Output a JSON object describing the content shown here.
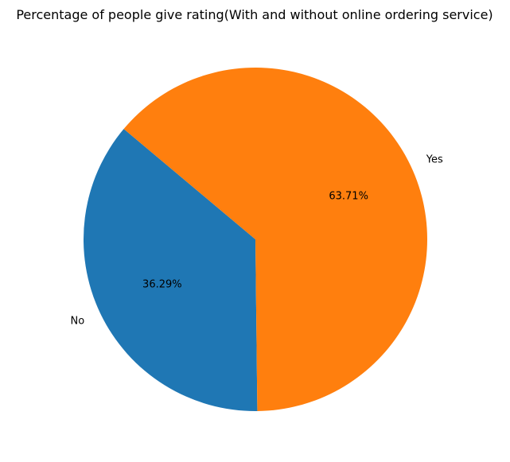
{
  "chart_data": {
    "type": "pie",
    "title": "Percentage of people give rating(With and without online ordering service)",
    "slices": [
      {
        "label": "No",
        "value": 36.29,
        "pct_label": "36.29%",
        "color": "#1f77b4"
      },
      {
        "label": "Yes",
        "value": 63.71,
        "pct_label": "63.71%",
        "color": "#ff7f0e"
      }
    ]
  }
}
